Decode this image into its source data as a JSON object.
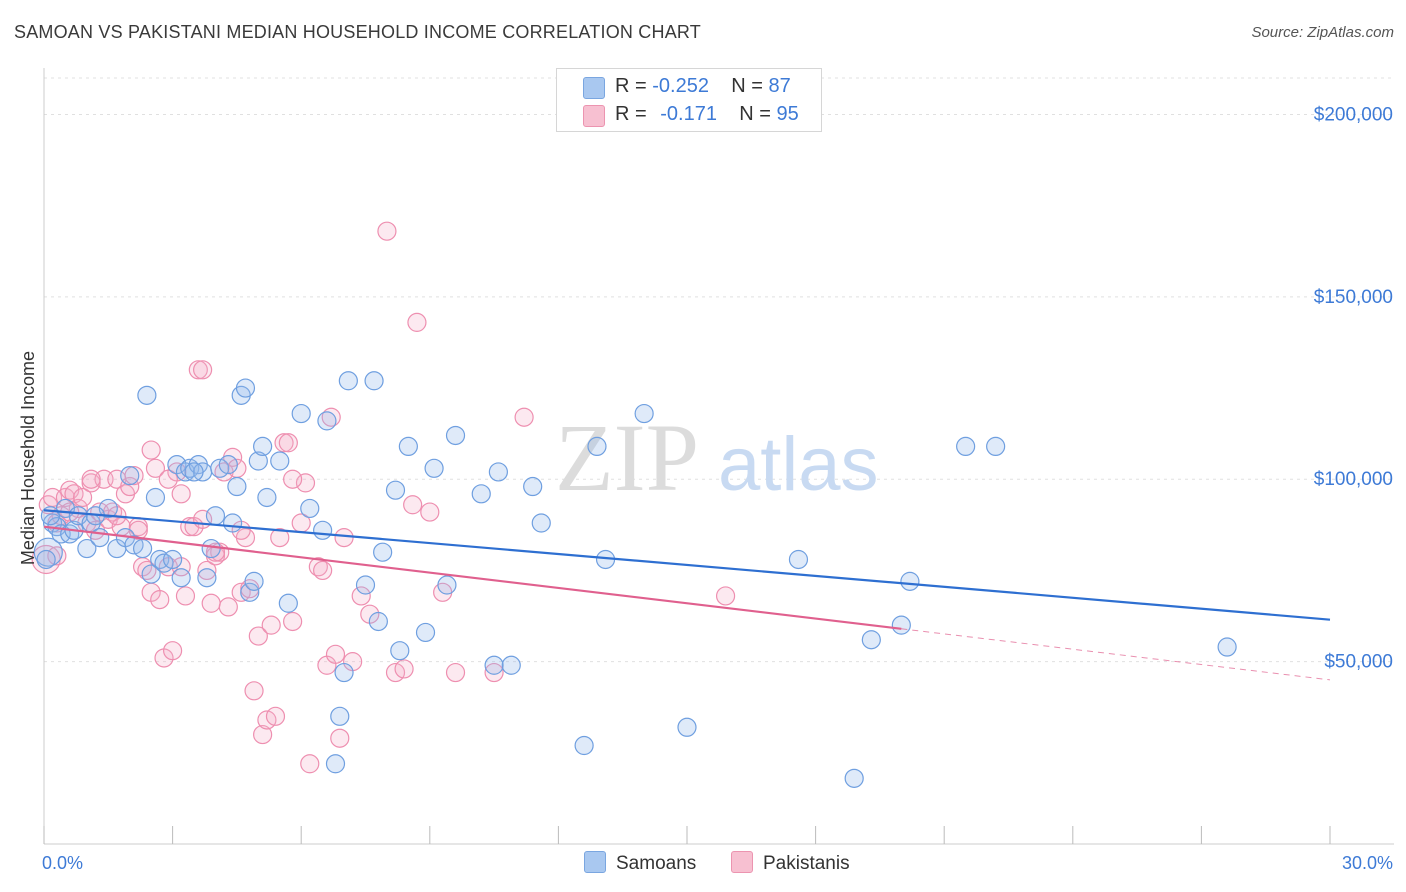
{
  "title": "SAMOAN VS PAKISTANI MEDIAN HOUSEHOLD INCOME CORRELATION CHART",
  "source": "Source: ZipAtlas.com",
  "watermark": {
    "zip": "ZIP",
    "atlas": "atlas"
  },
  "legend": {
    "rows": [
      {
        "r_label": "R = ",
        "r_value": "-0.252",
        "n_label": "N = ",
        "n_value": "87",
        "color": "#a9c8f0",
        "border": "#7aa6e0"
      },
      {
        "r_label": "R = ",
        "r_value": "-0.171",
        "n_label": "N = ",
        "n_value": "95",
        "color": "#f7c0d1",
        "border": "#ec94b0"
      }
    ]
  },
  "bottom_legend": [
    {
      "label": "Samoans",
      "color": "#a9c8f0",
      "border": "#7aa6e0"
    },
    {
      "label": "Pakistanis",
      "color": "#f7c0d1",
      "border": "#ec94b0"
    }
  ],
  "colors": {
    "samoan_stroke": "#6f9fe0",
    "samoan_fill": "rgba(150,185,235,0.30)",
    "pakistani_stroke": "#ee8fb0",
    "pakistani_fill": "rgba(245,175,200,0.28)",
    "samoan_line": "#2e6fd1",
    "pakistani_line": "#e0608e",
    "grid": "#e0e0e0",
    "axis_label": "#3d7ad6"
  },
  "chart_data": {
    "type": "scatter",
    "title": "SAMOAN VS PAKISTANI MEDIAN HOUSEHOLD INCOME CORRELATION CHART",
    "xlabel": "",
    "ylabel": "Median Household Income",
    "xlim": [
      0,
      30
    ],
    "ylim": [
      0,
      210000
    ],
    "x_tick_labels": [
      "0.0%",
      "30.0%"
    ],
    "y_ticks": [
      50000,
      100000,
      150000,
      200000
    ],
    "y_tick_labels": [
      "$50,000",
      "$100,000",
      "$150,000",
      "$200,000"
    ],
    "grid": true,
    "series": [
      {
        "name": "Samoans",
        "r": -0.252,
        "n": 87,
        "trend": {
          "x": [
            0,
            30
          ],
          "y": [
            91500,
            61500
          ]
        },
        "points": [
          [
            0.1,
            80000
          ],
          [
            0.2,
            88000
          ],
          [
            0.3,
            87000
          ],
          [
            0.4,
            85000
          ],
          [
            0.5,
            92000
          ],
          [
            0.6,
            85000
          ],
          [
            0.7,
            86000
          ],
          [
            0.8,
            90000
          ],
          [
            1.0,
            81000
          ],
          [
            1.1,
            88000
          ],
          [
            1.3,
            84000
          ],
          [
            1.5,
            92000
          ],
          [
            1.7,
            81000
          ],
          [
            1.9,
            84000
          ],
          [
            2.0,
            101000
          ],
          [
            2.1,
            82000
          ],
          [
            2.3,
            81000
          ],
          [
            2.4,
            123000
          ],
          [
            2.5,
            74000
          ],
          [
            2.6,
            95000
          ],
          [
            2.7,
            78000
          ],
          [
            2.8,
            77000
          ],
          [
            3.0,
            78000
          ],
          [
            3.1,
            104000
          ],
          [
            3.2,
            73000
          ],
          [
            3.3,
            102000
          ],
          [
            3.4,
            103000
          ],
          [
            3.6,
            104000
          ],
          [
            3.7,
            102000
          ],
          [
            3.8,
            73000
          ],
          [
            3.9,
            81000
          ],
          [
            4.0,
            90000
          ],
          [
            4.1,
            103000
          ],
          [
            4.3,
            104000
          ],
          [
            4.4,
            88000
          ],
          [
            4.5,
            98000
          ],
          [
            4.6,
            123000
          ],
          [
            4.7,
            125000
          ],
          [
            4.8,
            69000
          ],
          [
            4.9,
            72000
          ],
          [
            5.0,
            105000
          ],
          [
            5.1,
            109000
          ],
          [
            5.2,
            95000
          ],
          [
            5.5,
            105000
          ],
          [
            5.7,
            66000
          ],
          [
            6.0,
            118000
          ],
          [
            6.2,
            92000
          ],
          [
            6.5,
            86000
          ],
          [
            6.6,
            116000
          ],
          [
            6.8,
            22000
          ],
          [
            6.9,
            35000
          ],
          [
            7.0,
            47000
          ],
          [
            7.1,
            127000
          ],
          [
            7.5,
            71000
          ],
          [
            7.7,
            127000
          ],
          [
            7.8,
            61000
          ],
          [
            7.9,
            80000
          ],
          [
            8.2,
            97000
          ],
          [
            8.3,
            53000
          ],
          [
            8.5,
            109000
          ],
          [
            8.9,
            58000
          ],
          [
            9.1,
            103000
          ],
          [
            9.4,
            71000
          ],
          [
            9.6,
            112000
          ],
          [
            10.2,
            96000
          ],
          [
            10.5,
            49000
          ],
          [
            10.6,
            102000
          ],
          [
            10.9,
            49000
          ],
          [
            11.4,
            98000
          ],
          [
            11.6,
            88000
          ],
          [
            12.6,
            27000
          ],
          [
            12.9,
            109000
          ],
          [
            13.1,
            78000
          ],
          [
            14.0,
            118000
          ],
          [
            15.0,
            32000
          ],
          [
            17.6,
            78000
          ],
          [
            18.9,
            18000
          ],
          [
            19.3,
            56000
          ],
          [
            20.0,
            60000
          ],
          [
            20.2,
            72000
          ],
          [
            21.5,
            109000
          ],
          [
            22.2,
            109000
          ],
          [
            27.6,
            54000
          ],
          [
            0.05,
            78000
          ],
          [
            0.15,
            90000
          ],
          [
            1.2,
            90000
          ],
          [
            3.5,
            102000
          ]
        ]
      },
      {
        "name": "Pakistanis",
        "r": -0.171,
        "n": 95,
        "trend": {
          "x": [
            0,
            20
          ],
          "y": [
            87000,
            59000
          ]
        },
        "trend_dashed": {
          "x": [
            20,
            30
          ],
          "y": [
            59000,
            45000
          ]
        },
        "points": [
          [
            0.05,
            78000
          ],
          [
            0.1,
            93000
          ],
          [
            0.2,
            95000
          ],
          [
            0.3,
            88000
          ],
          [
            0.4,
            90000
          ],
          [
            0.5,
            95000
          ],
          [
            0.6,
            97000
          ],
          [
            0.7,
            96000
          ],
          [
            0.8,
            92000
          ],
          [
            0.9,
            95000
          ],
          [
            1.0,
            88000
          ],
          [
            1.1,
            99000
          ],
          [
            1.2,
            86000
          ],
          [
            1.3,
            91000
          ],
          [
            1.4,
            100000
          ],
          [
            1.5,
            89000
          ],
          [
            1.6,
            91000
          ],
          [
            1.7,
            100000
          ],
          [
            1.8,
            87000
          ],
          [
            1.9,
            96000
          ],
          [
            2.0,
            98000
          ],
          [
            2.1,
            101000
          ],
          [
            2.2,
            87000
          ],
          [
            2.3,
            76000
          ],
          [
            2.4,
            75000
          ],
          [
            2.5,
            69000
          ],
          [
            2.6,
            103000
          ],
          [
            2.7,
            67000
          ],
          [
            2.8,
            51000
          ],
          [
            2.9,
            76000
          ],
          [
            3.0,
            53000
          ],
          [
            3.1,
            102000
          ],
          [
            3.2,
            76000
          ],
          [
            3.3,
            68000
          ],
          [
            3.4,
            87000
          ],
          [
            3.5,
            87000
          ],
          [
            3.6,
            130000
          ],
          [
            3.7,
            130000
          ],
          [
            3.8,
            75000
          ],
          [
            3.9,
            66000
          ],
          [
            4.0,
            79000
          ],
          [
            4.1,
            80000
          ],
          [
            4.2,
            102000
          ],
          [
            4.3,
            65000
          ],
          [
            4.4,
            106000
          ],
          [
            4.5,
            103000
          ],
          [
            4.6,
            69000
          ],
          [
            4.7,
            84000
          ],
          [
            4.8,
            70000
          ],
          [
            4.9,
            42000
          ],
          [
            5.0,
            57000
          ],
          [
            5.1,
            30000
          ],
          [
            5.2,
            34000
          ],
          [
            5.3,
            60000
          ],
          [
            5.4,
            35000
          ],
          [
            5.5,
            84000
          ],
          [
            5.6,
            110000
          ],
          [
            5.7,
            110000
          ],
          [
            5.8,
            61000
          ],
          [
            6.0,
            88000
          ],
          [
            6.1,
            99000
          ],
          [
            6.2,
            22000
          ],
          [
            6.4,
            76000
          ],
          [
            6.5,
            75000
          ],
          [
            6.6,
            49000
          ],
          [
            6.7,
            117000
          ],
          [
            6.8,
            52000
          ],
          [
            6.9,
            29000
          ],
          [
            7.0,
            84000
          ],
          [
            7.2,
            50000
          ],
          [
            7.4,
            68000
          ],
          [
            7.6,
            63000
          ],
          [
            8.0,
            168000
          ],
          [
            8.2,
            47000
          ],
          [
            8.4,
            48000
          ],
          [
            8.6,
            93000
          ],
          [
            8.7,
            143000
          ],
          [
            9.0,
            91000
          ],
          [
            9.3,
            69000
          ],
          [
            9.6,
            47000
          ],
          [
            10.5,
            47000
          ],
          [
            11.2,
            117000
          ],
          [
            15.9,
            68000
          ],
          [
            0.3,
            79000
          ],
          [
            0.6,
            91000
          ],
          [
            1.1,
            100000
          ],
          [
            2.5,
            108000
          ],
          [
            3.2,
            96000
          ],
          [
            4.0,
            80000
          ],
          [
            2.2,
            86000
          ],
          [
            5.8,
            100000
          ],
          [
            4.6,
            86000
          ],
          [
            3.7,
            89000
          ],
          [
            1.7,
            90000
          ],
          [
            2.9,
            100000
          ]
        ]
      }
    ]
  }
}
